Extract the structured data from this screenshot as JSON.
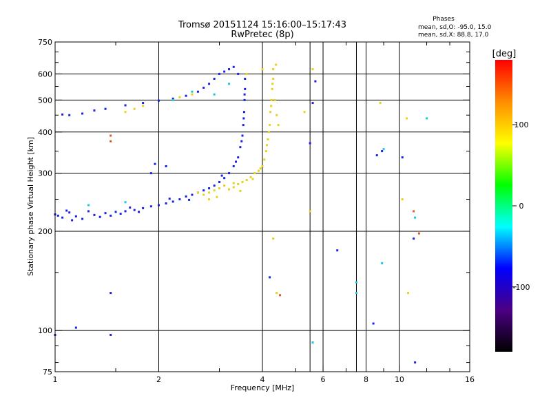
{
  "chart_data": {
    "type": "scatter",
    "title": "Tromsø 20151124 15:16:00–15:17:43",
    "subtitle": "RwPretec (8p)",
    "xlabel": "Frequency [MHz]",
    "ylabel": "Stationary phase Virtual Height [km]",
    "xscale": "log",
    "yscale": "log",
    "xlim": [
      1,
      16
    ],
    "ylim": [
      75,
      750
    ],
    "x_ticks": [
      {
        "value": 1,
        "label": "1"
      },
      {
        "value": 2,
        "label": "2"
      },
      {
        "value": 4,
        "label": "4"
      },
      {
        "value": 6,
        "label": "6"
      },
      {
        "value": 8,
        "label": "8"
      },
      {
        "value": 10,
        "label": "10"
      },
      {
        "value": 16,
        "label": "16"
      }
    ],
    "y_ticks": [
      {
        "value": 75,
        "label": "75"
      },
      {
        "value": 100,
        "label": "100"
      },
      {
        "value": 200,
        "label": "200"
      },
      {
        "value": 300,
        "label": "300"
      },
      {
        "value": 400,
        "label": "400"
      },
      {
        "value": 500,
        "label": "500"
      },
      {
        "value": 600,
        "label": "600"
      },
      {
        "value": 750,
        "label": "750"
      }
    ],
    "x_grid": [
      2,
      4,
      5.5,
      6,
      7.5,
      8,
      10
    ],
    "y_grid": [
      100,
      200,
      300,
      400,
      500,
      600
    ],
    "grid": true,
    "stats": {
      "header": "Phases",
      "line1": "mean, sd,O: -95.0, 15.0",
      "line2": "mean, sd,X:  88.8, 17.0"
    },
    "colorbar": {
      "title": "[deg]",
      "range": [
        -180,
        180
      ],
      "ticks": [
        {
          "value": 100,
          "label": "100"
        },
        {
          "value": 0,
          "label": "0"
        },
        {
          "value": -100,
          "label": "-100"
        }
      ],
      "colormap": [
        "#000000",
        "#4b0082",
        "#0000ff",
        "#00ffff",
        "#00ff00",
        "#ffff00",
        "#ff8c00",
        "#ff0000"
      ]
    },
    "series": [
      {
        "mode": "O",
        "phase_deg": -95,
        "color": "#1a22e6",
        "points": [
          [
            1.0,
            225
          ],
          [
            1.05,
            220
          ],
          [
            1.1,
            228
          ],
          [
            1.15,
            222
          ],
          [
            1.2,
            218
          ],
          [
            1.25,
            230
          ],
          [
            1.3,
            224
          ],
          [
            1.35,
            221
          ],
          [
            1.4,
            227
          ],
          [
            1.45,
            223
          ],
          [
            1.5,
            229
          ],
          [
            1.55,
            226
          ],
          [
            1.6,
            230
          ],
          [
            1.7,
            232
          ],
          [
            1.8,
            235
          ],
          [
            1.9,
            238
          ],
          [
            2.0,
            240
          ],
          [
            2.1,
            243
          ],
          [
            2.2,
            246
          ],
          [
            2.3,
            250
          ],
          [
            2.4,
            255
          ],
          [
            2.5,
            258
          ],
          [
            2.6,
            262
          ],
          [
            2.7,
            266
          ],
          [
            2.8,
            270
          ],
          [
            2.9,
            275
          ],
          [
            3.0,
            282
          ],
          [
            3.1,
            290
          ],
          [
            3.2,
            300
          ],
          [
            3.3,
            315
          ],
          [
            3.4,
            335
          ],
          [
            3.45,
            360
          ],
          [
            3.5,
            390
          ],
          [
            3.52,
            420
          ],
          [
            3.54,
            460
          ],
          [
            3.55,
            500
          ],
          [
            3.56,
            540
          ],
          [
            3.56,
            580
          ],
          [
            3.4,
            600
          ],
          [
            3.2,
            620
          ],
          [
            3.0,
            600
          ],
          [
            2.8,
            560
          ],
          [
            2.6,
            530
          ],
          [
            2.4,
            515
          ],
          [
            2.2,
            505
          ],
          [
            2.0,
            498
          ],
          [
            1.8,
            490
          ],
          [
            1.6,
            482
          ],
          [
            1.4,
            470
          ],
          [
            1.3,
            465
          ],
          [
            1.2,
            455
          ],
          [
            1.1,
            450
          ],
          [
            1.05,
            452
          ],
          [
            1.02,
            223
          ],
          [
            1.08,
            231
          ],
          [
            1.12,
            216
          ],
          [
            1.65,
            236
          ],
          [
            1.75,
            229
          ],
          [
            2.15,
            251
          ],
          [
            2.45,
            249
          ],
          [
            3.05,
            295
          ],
          [
            3.35,
            325
          ],
          [
            3.48,
            375
          ],
          [
            3.53,
            440
          ],
          [
            3.55,
            520
          ],
          [
            3.3,
            630
          ],
          [
            3.1,
            610
          ],
          [
            2.9,
            580
          ],
          [
            2.7,
            545
          ],
          [
            1.9,
            300
          ],
          [
            1.95,
            320
          ],
          [
            2.1,
            315
          ],
          [
            1.45,
            130
          ],
          [
            1.45,
            97
          ],
          [
            1.0,
            97
          ],
          [
            1.15,
            102
          ],
          [
            4.2,
            145
          ],
          [
            6.6,
            175
          ],
          [
            8.4,
            105
          ],
          [
            8.9,
            350
          ],
          [
            10.2,
            335
          ],
          [
            11.0,
            190
          ],
          [
            11.1,
            80
          ],
          [
            5.5,
            370
          ],
          [
            5.6,
            490
          ],
          [
            5.7,
            570
          ],
          [
            8.6,
            340
          ]
        ]
      },
      {
        "mode": "X",
        "phase_deg": 88.8,
        "color": "#e6d21a",
        "points": [
          [
            2.6,
            262
          ],
          [
            2.7,
            258
          ],
          [
            2.8,
            262
          ],
          [
            2.9,
            266
          ],
          [
            3.0,
            270
          ],
          [
            3.1,
            275
          ],
          [
            3.2,
            268
          ],
          [
            3.3,
            272
          ],
          [
            3.4,
            278
          ],
          [
            3.5,
            282
          ],
          [
            3.6,
            286
          ],
          [
            3.7,
            292
          ],
          [
            3.8,
            300
          ],
          [
            3.9,
            305
          ],
          [
            4.0,
            315
          ],
          [
            4.05,
            330
          ],
          [
            4.1,
            350
          ],
          [
            4.15,
            380
          ],
          [
            4.2,
            420
          ],
          [
            4.22,
            460
          ],
          [
            4.25,
            500
          ],
          [
            4.27,
            540
          ],
          [
            4.3,
            580
          ],
          [
            4.3,
            620
          ],
          [
            4.35,
            500
          ],
          [
            4.4,
            450
          ],
          [
            4.45,
            420
          ],
          [
            4.38,
            640
          ],
          [
            4.0,
            620
          ],
          [
            3.6,
            600
          ],
          [
            3.3,
            280
          ],
          [
            3.45,
            265
          ],
          [
            3.75,
            288
          ],
          [
            3.95,
            310
          ],
          [
            4.12,
            365
          ],
          [
            4.18,
            400
          ],
          [
            4.24,
            480
          ],
          [
            4.28,
            560
          ],
          [
            1.6,
            460
          ],
          [
            1.7,
            470
          ],
          [
            1.8,
            480
          ],
          [
            2.3,
            510
          ],
          [
            2.5,
            520
          ],
          [
            2.8,
            250
          ],
          [
            2.95,
            254
          ],
          [
            4.3,
            190
          ],
          [
            4.4,
            130
          ],
          [
            5.3,
            460
          ],
          [
            5.5,
            230
          ],
          [
            5.6,
            620
          ],
          [
            10.2,
            250
          ],
          [
            10.5,
            440
          ],
          [
            10.6,
            130
          ],
          [
            8.8,
            490
          ]
        ]
      },
      {
        "mode": "other",
        "color": "#19c8e0",
        "points": [
          [
            1.25,
            240
          ],
          [
            1.6,
            245
          ],
          [
            2.2,
            500
          ],
          [
            2.5,
            530
          ],
          [
            2.9,
            520
          ],
          [
            3.2,
            560
          ],
          [
            5.6,
            92
          ],
          [
            7.5,
            140
          ],
          [
            7.5,
            130
          ],
          [
            8.9,
            160
          ],
          [
            11.1,
            220
          ],
          [
            12.0,
            440
          ],
          [
            9.0,
            355
          ]
        ]
      },
      {
        "mode": "other",
        "color": "#e05a19",
        "points": [
          [
            1.45,
            390
          ],
          [
            1.45,
            375
          ],
          [
            4.5,
            128
          ],
          [
            11.0,
            230
          ],
          [
            11.4,
            197
          ]
        ]
      }
    ]
  }
}
